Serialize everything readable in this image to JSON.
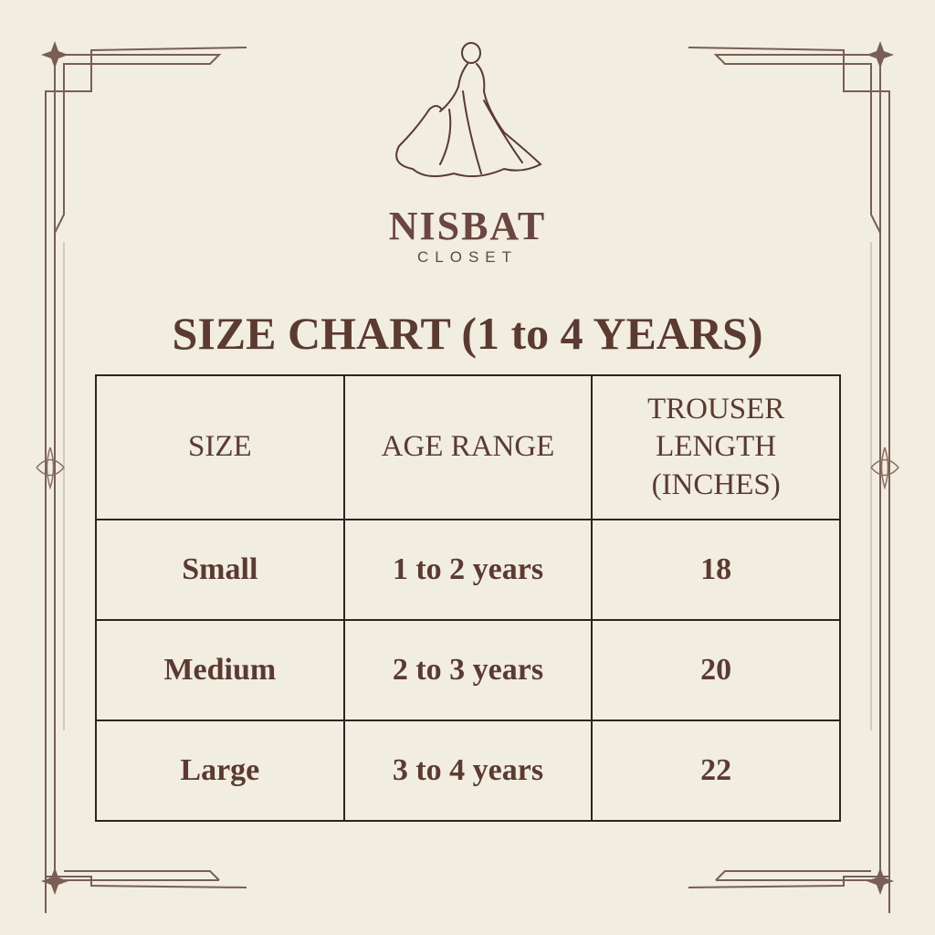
{
  "brand": {
    "name": "NISBAT",
    "tagline": "CLOSET",
    "logo_icon": "woman-in-gown-icon"
  },
  "title": "SIZE CHART (1 to 4 YEARS)",
  "table": {
    "headers": [
      "SIZE",
      "AGE RANGE",
      "TROUSER LENGTH (INCHES)"
    ],
    "rows": [
      [
        "Small",
        "1 to 2 years",
        "18"
      ],
      [
        "Medium",
        "2 to 3 years",
        "20"
      ],
      [
        "Large",
        "3 to 4 years",
        "22"
      ]
    ]
  },
  "colors": {
    "background": "#f1ede1",
    "text": "#5b3a31",
    "border": "#7a5e55"
  }
}
